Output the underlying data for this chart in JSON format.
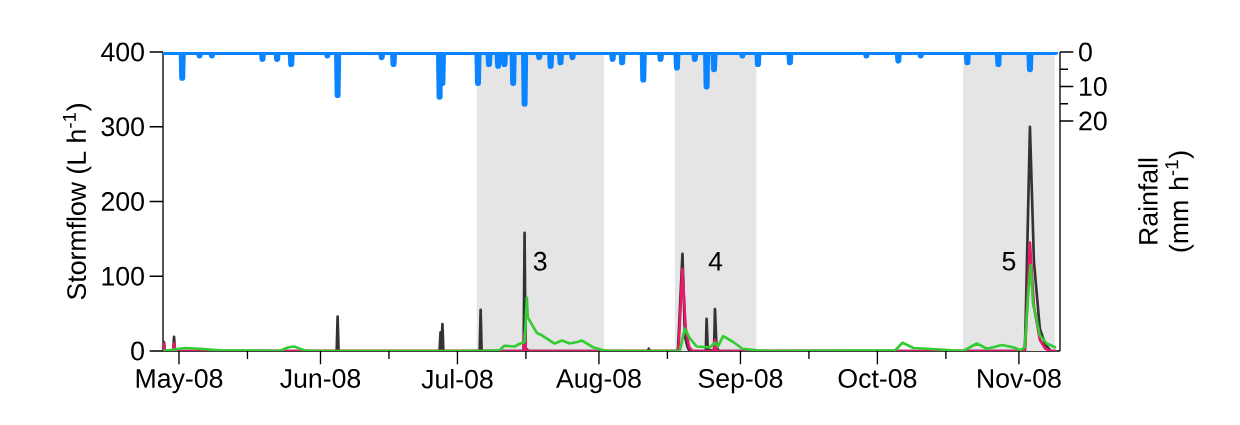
{
  "chart_data": {
    "type": "line",
    "ylabel": "Stormflow (L h$^{-1}$)",
    "y2label": "Rainfall (mm h$^{-1}$)",
    "xlim": [
      "2008-04-27T12:00",
      "2008-11-10T00:00"
    ],
    "xticks": [
      {
        "value": "2008-05-01",
        "label": "May-08"
      },
      {
        "value": "2008-05-16",
        "label": null
      },
      {
        "value": "2008-06-01",
        "label": "Jun-08"
      },
      {
        "value": "2008-06-16",
        "label": null
      },
      {
        "value": "2008-07-01",
        "label": "Jul-08"
      },
      {
        "value": "2008-07-16",
        "label": null
      },
      {
        "value": "2008-08-01",
        "label": "Aug-08"
      },
      {
        "value": "2008-08-16",
        "label": null
      },
      {
        "value": "2008-09-01",
        "label": "Sep-08"
      },
      {
        "value": "2008-09-16",
        "label": null
      },
      {
        "value": "2008-10-01",
        "label": "Oct-08"
      },
      {
        "value": "2008-10-16",
        "label": null
      },
      {
        "value": "2008-11-01",
        "label": "Nov-08"
      }
    ],
    "ylim": [
      0,
      400
    ],
    "yticks": [
      0,
      100,
      200,
      300,
      400
    ],
    "y2lim": [
      86.7,
      0
    ],
    "y2ticks": [
      0,
      {
        "value": 5,
        "label": null
      },
      10,
      {
        "value": 15,
        "label": null
      },
      20
    ],
    "grid": false,
    "marker": "none",
    "line_style": "solid",
    "bands": [
      {
        "axis": "x",
        "from": "2008-07-05T04:00",
        "to": "2008-08-02T02:00",
        "label": "3",
        "color": "#e5e5e5"
      },
      {
        "axis": "x",
        "from": "2008-08-17T14:00",
        "to": "2008-09-04T12:00",
        "label": "4",
        "color": "#e5e5e5"
      },
      {
        "axis": "x",
        "from": "2008-10-19T19:00",
        "to": "2008-11-08T20:00",
        "label": "5",
        "color": "#e5e5e5"
      }
    ],
    "series": [
      {
        "color": "#333333",
        "x": [
          "2008-04-27T12:00",
          "2008-04-27T17:00",
          "2008-04-27T22:00",
          "2008-04-29T17:00",
          "2008-04-29T22:00",
          "2008-04-30T03:00",
          "2008-06-04T13:00",
          "2008-06-04T18:00",
          "2008-06-04T23:00",
          "2008-06-27T02:00",
          "2008-06-27T07:00",
          "2008-06-27T12:00",
          "2008-06-27T17:00",
          "2008-06-27T22:00",
          "2008-07-05T21:00",
          "2008-07-06T02:00",
          "2008-07-06T07:00",
          "2008-07-15T12:00",
          "2008-07-15T17:00",
          "2008-07-15T22:00",
          "2008-07-16T12:00",
          "2008-08-11T17:00",
          "2008-08-11T22:00",
          "2008-08-12T03:00",
          "2008-08-18T07:00",
          "2008-08-18T12:00",
          "2008-08-19T07:00",
          "2008-08-19T20:00",
          "2008-08-20T10:00",
          "2008-08-20T20:00",
          "2008-08-24T10:00",
          "2008-08-24T14:00",
          "2008-08-24T20:00",
          "2008-08-26T05:00",
          "2008-08-26T10:00",
          "2008-08-26T18:00",
          "2008-08-27T06:00",
          "2008-11-02T07:00",
          "2008-11-02T12:00",
          "2008-11-03T10:00",
          "2008-11-04T07:00",
          "2008-11-05T14:00",
          "2008-11-06T19:00",
          "2008-11-08T00:00",
          "2008-11-09T00:00"
        ],
        "values": [
          0,
          12,
          0,
          0,
          19,
          0,
          0,
          46,
          0,
          0,
          25,
          3,
          36,
          0,
          0,
          55,
          0,
          0,
          158,
          4,
          0,
          0,
          3,
          0,
          0,
          25,
          130,
          20,
          5,
          0,
          0,
          43,
          2,
          0,
          56,
          5,
          0,
          0,
          45,
          300,
          120,
          30,
          8,
          0,
          0
        ]
      },
      {
        "color": "#e8196b",
        "x": [
          "2008-04-27T12:00",
          "2008-04-27T17:00",
          "2008-04-27T22:00",
          "2008-04-29T17:00",
          "2008-04-29T22:00",
          "2008-04-30T03:00",
          "2008-07-15T12:00",
          "2008-07-15T17:00",
          "2008-07-16T00:00",
          "2008-08-18T07:00",
          "2008-08-18T12:00",
          "2008-08-19T07:00",
          "2008-08-20T00:00",
          "2008-08-20T18:00",
          "2008-08-21T12:00",
          "2008-08-26T05:00",
          "2008-08-26T10:00",
          "2008-08-26T20:00",
          "2008-11-02T07:00",
          "2008-11-02T12:00",
          "2008-11-03T10:00",
          "2008-11-04T07:00",
          "2008-11-05T14:00",
          "2008-11-06T19:00",
          "2008-11-08T00:00",
          "2008-11-09T00:00"
        ],
        "values": [
          0,
          10,
          0,
          0,
          10,
          0,
          0,
          25,
          0,
          0,
          10,
          110,
          30,
          5,
          0,
          0,
          15,
          0,
          0,
          20,
          145,
          60,
          15,
          3,
          0,
          0
        ]
      },
      {
        "color": "#33cc33",
        "x": [
          "2008-04-27T12:00",
          "2008-05-02T07:00",
          "2008-05-05T14:00",
          "2008-05-09T22:00",
          "2008-05-23T00:00",
          "2008-05-25T00:00",
          "2008-05-26T05:00",
          "2008-05-28T10:00",
          "2008-05-30T00:00",
          "2008-07-05T05:00",
          "2008-07-10T05:00",
          "2008-07-11T07:00",
          "2008-07-13T12:00",
          "2008-07-14T19:00",
          "2008-07-15T17:00",
          "2008-07-16T05:00",
          "2008-07-16T10:00",
          "2008-07-18T10:00",
          "2008-07-19T12:00",
          "2008-07-22T07:00",
          "2008-07-23T22:00",
          "2008-07-25T14:00",
          "2008-07-27T05:00",
          "2008-07-28T07:00",
          "2008-07-30T17:00",
          "2008-08-01T22:00",
          "2008-08-03T12:00",
          "2008-08-18T17:00",
          "2008-08-19T19:00",
          "2008-08-20T22:00",
          "2008-08-22T10:00",
          "2008-08-25T07:00",
          "2008-08-26T10:00",
          "2008-08-27T02:00",
          "2008-08-28T05:00",
          "2008-08-30T10:00",
          "2008-09-01T10:00",
          "2008-09-04T12:00",
          "2008-09-07T00:00",
          "2008-10-04T22:00",
          "2008-10-06T12:00",
          "2008-10-08T22:00",
          "2008-10-11T22:00",
          "2008-10-14T19:00",
          "2008-10-19T19:00",
          "2008-10-22T19:00",
          "2008-10-25T00:00",
          "2008-10-28T07:00",
          "2008-10-30T17:00",
          "2008-11-01T07:00",
          "2008-11-02T07:00",
          "2008-11-03T02:00",
          "2008-11-03T14:00",
          "2008-11-04T02:00",
          "2008-11-05T14:00",
          "2008-11-07T02:00",
          "2008-11-08T22:00"
        ],
        "values": [
          0,
          4,
          3,
          1,
          0,
          5,
          6,
          1,
          0,
          0,
          1,
          7,
          6,
          10,
          12,
          71,
          45,
          24,
          21,
          10,
          14,
          10,
          12,
          14,
          5,
          1,
          0,
          0,
          30,
          17,
          6,
          5,
          11,
          6,
          20,
          12,
          3,
          1,
          0,
          1,
          11,
          4,
          3,
          2,
          0,
          10,
          3,
          8,
          5,
          1,
          5,
          80,
          115,
          64,
          21,
          10,
          5
        ]
      },
      {
        "color": "#0a84ff",
        "axis": "y2",
        "x": [
          "2008-04-27T12:00",
          "2008-05-01T14:00",
          "2008-05-01T17:00",
          "2008-05-01T20:00",
          "2008-05-05T09:00",
          "2008-05-05T12:00",
          "2008-05-05T15:00",
          "2008-05-08T02:00",
          "2008-05-08T05:00",
          "2008-05-08T08:00",
          "2008-05-19T04:00",
          "2008-05-19T07:00",
          "2008-05-19T10:00",
          "2008-05-22T09:00",
          "2008-05-22T12:00",
          "2008-05-22T15:00",
          "2008-05-25T11:00",
          "2008-05-25T14:00",
          "2008-05-25T17:00",
          "2008-06-02T09:00",
          "2008-06-02T12:00",
          "2008-06-02T15:00",
          "2008-06-04T15:00",
          "2008-06-04T18:00",
          "2008-06-04T21:00",
          "2008-06-14T07:00",
          "2008-06-14T10:00",
          "2008-06-14T13:00",
          "2008-06-16T21:00",
          "2008-06-17T00:00",
          "2008-06-17T03:00",
          "2008-06-26T23:00",
          "2008-06-27T02:00",
          "2008-06-27T05:00",
          "2008-06-27T14:00",
          "2008-06-27T17:00",
          "2008-06-27T20:00",
          "2008-07-05T09:00",
          "2008-07-05T12:00",
          "2008-07-05T15:00",
          "2008-07-07T19:00",
          "2008-07-07T22:00",
          "2008-07-08T01:00",
          "2008-07-09T19:00",
          "2008-07-09T22:00",
          "2008-07-10T01:00",
          "2008-07-11T04:00",
          "2008-07-11T07:00",
          "2008-07-11T10:00",
          "2008-07-13T02:00",
          "2008-07-13T05:00",
          "2008-07-13T08:00",
          "2008-07-15T14:00",
          "2008-07-15T17:00",
          "2008-07-15T20:00",
          "2008-07-18T19:00",
          "2008-07-18T22:00",
          "2008-07-19T01:00",
          "2008-07-21T07:00",
          "2008-07-21T10:00",
          "2008-07-21T13:00",
          "2008-07-23T11:00",
          "2008-07-23T14:00",
          "2008-07-23T17:00",
          "2008-07-26T02:00",
          "2008-07-26T05:00",
          "2008-07-26T08:00",
          "2008-08-03T21:00",
          "2008-08-04T00:00",
          "2008-08-04T03:00",
          "2008-08-05T23:00",
          "2008-08-06T02:00",
          "2008-08-06T05:00",
          "2008-08-10T14:00",
          "2008-08-10T17:00",
          "2008-08-10T20:00",
          "2008-08-14T09:00",
          "2008-08-14T12:00",
          "2008-08-14T15:00",
          "2008-08-17T23:00",
          "2008-08-18T02:00",
          "2008-08-18T05:00",
          "2008-08-21T21:00",
          "2008-08-22T00:00",
          "2008-08-22T03:00",
          "2008-08-24T11:00",
          "2008-08-24T14:00",
          "2008-08-24T17:00",
          "2008-08-26T02:00",
          "2008-08-26T05:00",
          "2008-08-26T08:00",
          "2008-09-01T07:00",
          "2008-09-01T10:00",
          "2008-09-01T13:00",
          "2008-09-04T17:00",
          "2008-09-04T20:00",
          "2008-09-04T23:00",
          "2008-09-11T17:00",
          "2008-09-11T20:00",
          "2008-09-11T23:00",
          "2008-09-28T11:00",
          "2008-09-28T14:00",
          "2008-09-28T17:00",
          "2008-10-05T11:00",
          "2008-10-05T14:00",
          "2008-10-05T17:00",
          "2008-10-10T09:00",
          "2008-10-10T12:00",
          "2008-10-10T15:00",
          "2008-10-20T14:00",
          "2008-10-20T17:00",
          "2008-10-20T20:00",
          "2008-10-27T09:00",
          "2008-10-27T12:00",
          "2008-10-27T15:00",
          "2008-11-03T07:00",
          "2008-11-03T10:00",
          "2008-11-03T13:00",
          "2008-11-09T00:00"
        ],
        "values": [
          0,
          0,
          7.5,
          0,
          0,
          1,
          0,
          0,
          1,
          0,
          0,
          2,
          0,
          0,
          2,
          0,
          0,
          3.5,
          0,
          0,
          1,
          0,
          0,
          12.5,
          0,
          0,
          1.5,
          0,
          0,
          3.5,
          0,
          0,
          13,
          0,
          0,
          9,
          0,
          0,
          9,
          0,
          0,
          3.5,
          0,
          0,
          4,
          0,
          0,
          3.5,
          0,
          0,
          9,
          0,
          0,
          15,
          0,
          0,
          1.5,
          0,
          0,
          4,
          0,
          0,
          3,
          0,
          0,
          1.5,
          0,
          0,
          2,
          0,
          0,
          3,
          0,
          0,
          8,
          0,
          0,
          2,
          0,
          0,
          4.5,
          0,
          0,
          2,
          0,
          0,
          10,
          0,
          0,
          5,
          0,
          0,
          1,
          0,
          0,
          3.5,
          0,
          0,
          3,
          0,
          0,
          1,
          0,
          0,
          2.5,
          0,
          0,
          1,
          0,
          0,
          3,
          0,
          0,
          3.5,
          0,
          0,
          5,
          0,
          0
        ]
      }
    ]
  }
}
